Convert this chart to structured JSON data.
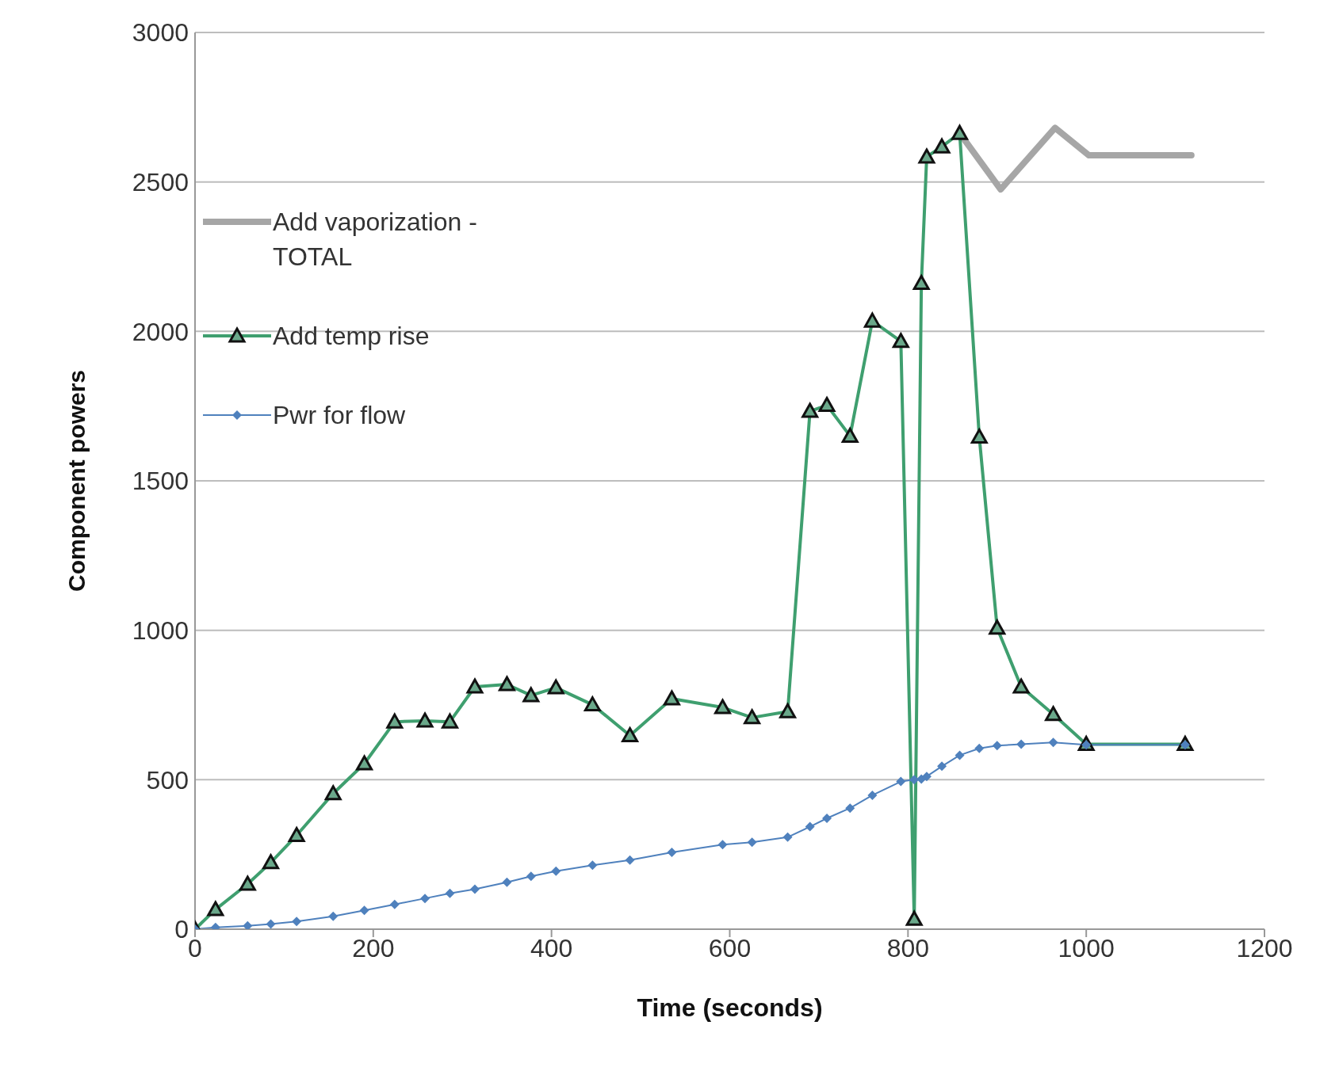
{
  "chart_data": {
    "type": "line",
    "xlabel": "Time (seconds)",
    "ylabel": "Component powers",
    "x": [
      0,
      23,
      59,
      85,
      114,
      155,
      190,
      224,
      258,
      286,
      314,
      350,
      377,
      405,
      446,
      488,
      535,
      592,
      625,
      665,
      690,
      709,
      735,
      760,
      792,
      807,
      815,
      821,
      838,
      858,
      880,
      900,
      927,
      963,
      1000,
      1111
    ],
    "series": [
      {
        "name": "Add vaporization - TOTAL",
        "color": "#a6a6a6",
        "marker": "none",
        "x": [
          858,
          904,
          965,
          1003,
          1118
        ],
        "values": [
          2663,
          2475,
          2681,
          2589,
          2589
        ]
      },
      {
        "name": "Add temp rise",
        "color": "#3f9f6f",
        "marker": "triangle",
        "values": [
          0,
          66,
          151,
          223,
          314,
          454,
          554,
          694,
          697,
          694,
          811,
          819,
          782,
          808,
          751,
          648,
          771,
          742,
          708,
          728,
          1733,
          1753,
          1650,
          2035,
          1967,
          34,
          2161,
          2584,
          2618,
          2663,
          1647,
          1008,
          811,
          719,
          619,
          619
        ]
      },
      {
        "name": "Pwr for flow",
        "color": "#4f81bd",
        "marker": "diamond",
        "values": [
          0,
          6,
          11,
          17,
          26,
          43,
          63,
          83,
          103,
          120,
          134,
          157,
          177,
          194,
          214,
          231,
          257,
          283,
          291,
          308,
          343,
          371,
          405,
          448,
          494,
          500,
          502,
          511,
          545,
          582,
          605,
          614,
          619,
          625,
          617,
          617
        ]
      }
    ],
    "xlim": [
      0,
      1200
    ],
    "xticks": [
      0,
      200,
      400,
      600,
      800,
      1000,
      1200
    ],
    "ylim": [
      0,
      3000
    ],
    "yticks": [
      0,
      500,
      1000,
      1500,
      2000,
      2500,
      3000
    ],
    "grid": "y",
    "legend": "top left",
    "line_style": "solid"
  }
}
